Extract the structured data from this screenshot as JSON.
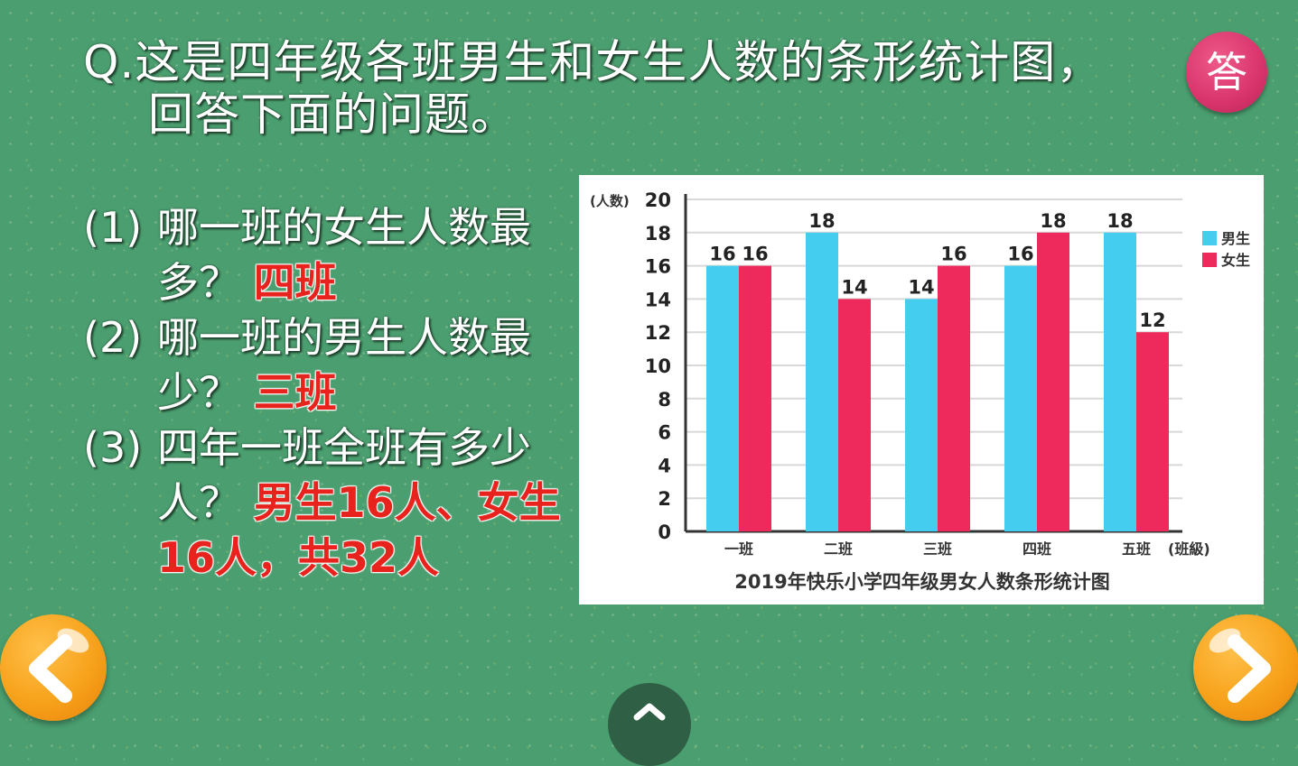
{
  "question": {
    "line1": "Q.这是四年级各班男生和女生人数的条形统计图，",
    "line2": "回答下面的问题。"
  },
  "answer_button": {
    "label": "答"
  },
  "qa": [
    {
      "num": "(1)",
      "text": "哪一班的女生人数最多？",
      "answer": "四班"
    },
    {
      "num": "(2)",
      "text": "哪一班的男生人数最少？",
      "answer": "三班"
    },
    {
      "num": "(3)",
      "text": "四年一班全班有多少人？",
      "answer": "男生16人、女生16人，共32人"
    }
  ],
  "navigation": {
    "prev_icon": "chevron-left-icon",
    "next_icon": "chevron-right-icon",
    "home_icon": "chevron-up-icon"
  },
  "colors": {
    "background": "#4a9e6f",
    "boys": "#45cdf0",
    "girls": "#ee2a5c",
    "answer_text": "#e8231d",
    "nav_button": "#f7a21b",
    "answer_button": "#d8346b"
  },
  "chart_data": {
    "type": "bar",
    "title": "2019年快乐小学四年级男女人数条形统计图",
    "xlabel": "(班級)",
    "ylabel": "(人数)",
    "categories": [
      "一班",
      "二班",
      "三班",
      "四班",
      "五班"
    ],
    "series": [
      {
        "name": "男生",
        "color": "#45cdf0",
        "values": [
          16,
          18,
          14,
          16,
          18
        ]
      },
      {
        "name": "女生",
        "color": "#ee2a5c",
        "values": [
          16,
          14,
          16,
          18,
          12
        ]
      }
    ],
    "ylim": [
      0,
      20
    ],
    "yticks": [
      0,
      2,
      4,
      6,
      8,
      10,
      12,
      14,
      16,
      18,
      20
    ],
    "grid": true,
    "legend": "right",
    "data_labels": true
  }
}
